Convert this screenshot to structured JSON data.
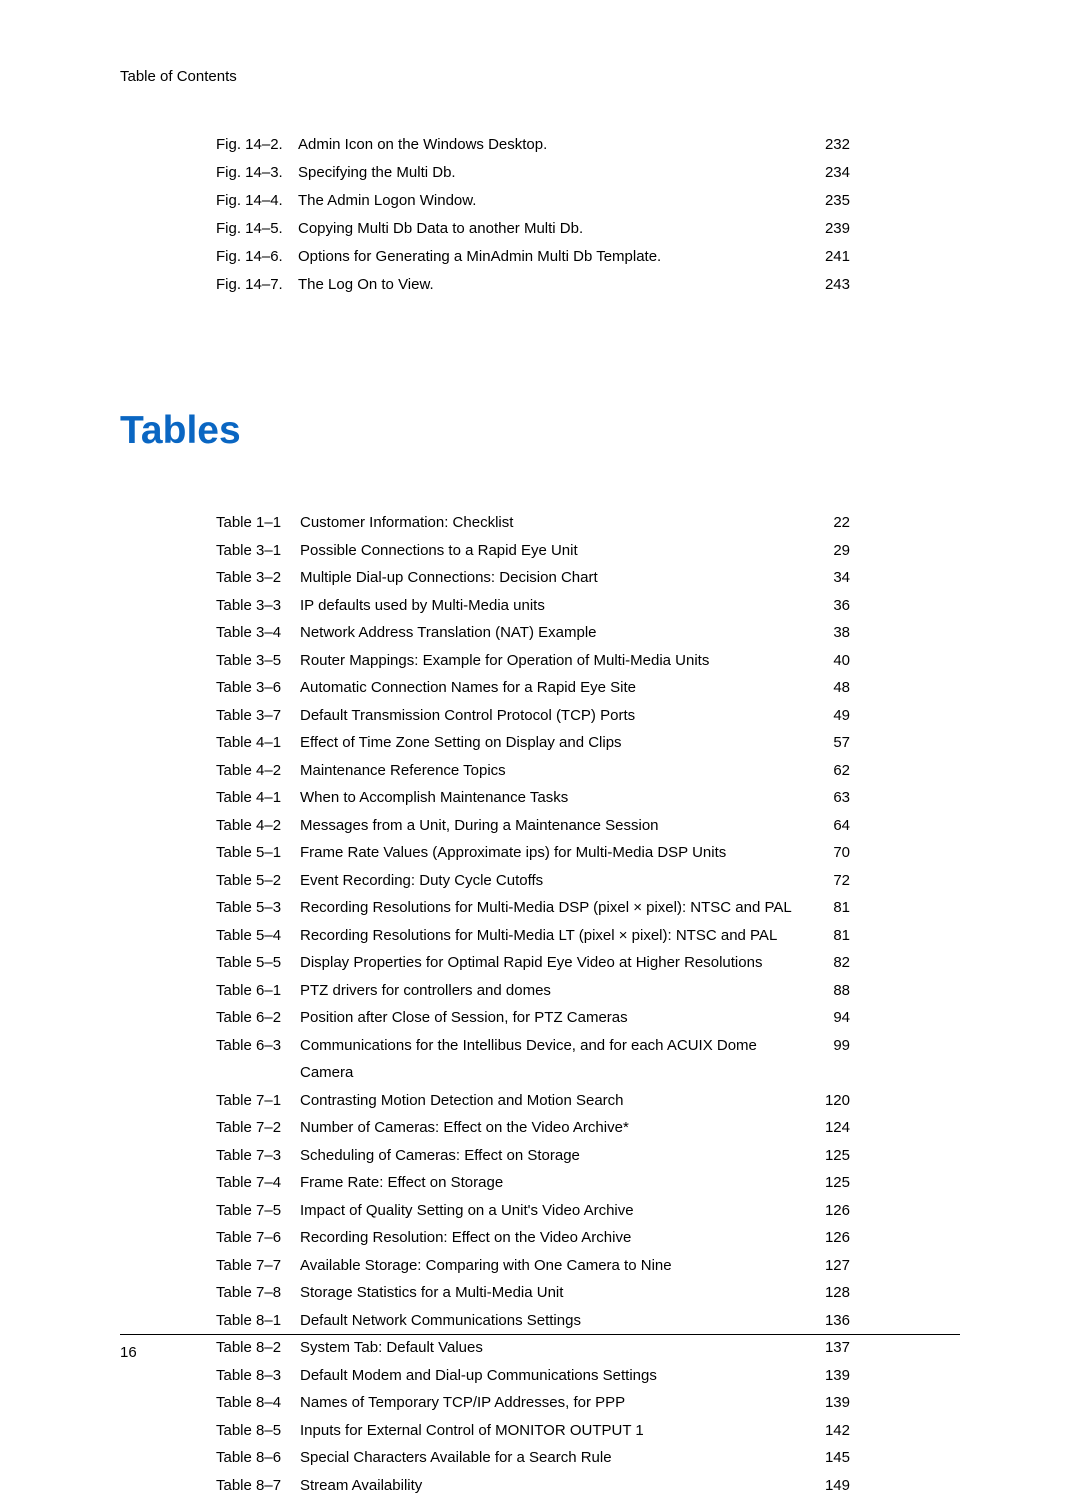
{
  "header_label": "Table of Contents",
  "section_heading": "Tables",
  "page_number": "16",
  "figures": [
    {
      "id": "Fig. 14–2.",
      "title": "Admin Icon on the Windows Desktop.",
      "page": "232"
    },
    {
      "id": "Fig. 14–3.",
      "title": "Specifying the Multi Db.",
      "page": "234"
    },
    {
      "id": "Fig. 14–4.",
      "title": "The Admin Logon Window.",
      "page": "235"
    },
    {
      "id": "Fig. 14–5.",
      "title": "Copying Multi Db Data to another Multi Db.",
      "page": "239"
    },
    {
      "id": "Fig. 14–6.",
      "title": "Options for Generating a MinAdmin Multi Db Template.",
      "page": "241"
    },
    {
      "id": "Fig. 14–7.",
      "title": "The Log On to View.",
      "page": "243"
    }
  ],
  "tables": [
    {
      "id": "Table 1–1",
      "title": "Customer Information: Checklist",
      "page": "22"
    },
    {
      "id": "Table 3–1",
      "title": "Possible Connections to a Rapid Eye Unit",
      "page": "29"
    },
    {
      "id": "Table 3–2",
      "title": "Multiple Dial-up Connections: Decision Chart",
      "page": "34"
    },
    {
      "id": "Table 3–3",
      "title": "IP defaults used by Multi-Media units",
      "page": "36"
    },
    {
      "id": "Table 3–4",
      "title": "Network Address Translation (NAT) Example",
      "page": "38"
    },
    {
      "id": "Table 3–5",
      "title": "Router Mappings: Example for Operation of Multi-Media Units",
      "page": "40"
    },
    {
      "id": "Table 3–6",
      "title": "Automatic Connection Names for a Rapid Eye Site",
      "page": "48"
    },
    {
      "id": "Table 3–7",
      "title": "Default Transmission Control Protocol (TCP) Ports",
      "page": "49"
    },
    {
      "id": "Table 4–1",
      "title": "Effect of Time Zone Setting on Display and Clips",
      "page": "57"
    },
    {
      "id": "Table 4–2",
      "title": "Maintenance Reference Topics",
      "page": "62"
    },
    {
      "id": "Table 4–1",
      "title": "When to Accomplish Maintenance Tasks",
      "page": "63"
    },
    {
      "id": "Table 4–2",
      "title": "Messages from a Unit, During a Maintenance Session",
      "page": "64"
    },
    {
      "id": "Table 5–1",
      "title": "Frame Rate Values (Approximate ips) for Multi-Media DSP Units",
      "page": "70"
    },
    {
      "id": "Table 5–2",
      "title": "Event Recording: Duty Cycle Cutoffs",
      "page": "72"
    },
    {
      "id": "Table 5–3",
      "title": "Recording Resolutions for Multi-Media DSP (pixel × pixel): NTSC and PAL",
      "page": "81"
    },
    {
      "id": "Table 5–4",
      "title": "Recording Resolutions for Multi-Media LT (pixel × pixel): NTSC and PAL",
      "page": "81"
    },
    {
      "id": "Table 5–5",
      "title": "Display Properties for Optimal Rapid Eye Video at Higher Resolutions",
      "page": "82"
    },
    {
      "id": "Table 6–1",
      "title": "PTZ drivers for controllers and domes",
      "page": "88"
    },
    {
      "id": "Table 6–2",
      "title": "Position after Close of Session, for PTZ Cameras",
      "page": "94"
    },
    {
      "id": "Table 6–3",
      "title": "Communications for the Intellibus Device, and for each ACUIX Dome Camera",
      "page": "99"
    },
    {
      "id": "Table 7–1",
      "title": "Contrasting Motion Detection and Motion Search",
      "page": "120"
    },
    {
      "id": "Table 7–2",
      "title": "Number of Cameras: Effect on the Video Archive*",
      "page": "124"
    },
    {
      "id": "Table 7–3",
      "title": "Scheduling of Cameras: Effect on Storage",
      "page": "125"
    },
    {
      "id": "Table 7–4",
      "title": "Frame Rate: Effect on Storage",
      "page": "125"
    },
    {
      "id": "Table 7–5",
      "title": "Impact of Quality Setting on a Unit's Video Archive",
      "page": "126"
    },
    {
      "id": "Table 7–6",
      "title": "Recording Resolution: Effect on the Video Archive",
      "page": "126"
    },
    {
      "id": "Table 7–7",
      "title": "Available Storage: Comparing with One Camera to Nine",
      "page": "127"
    },
    {
      "id": "Table 7–8",
      "title": "Storage Statistics for a Multi-Media Unit",
      "page": "128"
    },
    {
      "id": "Table 8–1",
      "title": "Default Network Communications Settings",
      "page": "136"
    },
    {
      "id": "Table 8–2",
      "title": "System Tab: Default Values",
      "page": "137"
    },
    {
      "id": "Table 8–3",
      "title": "Default Modem and Dial-up Communications Settings",
      "page": "139"
    },
    {
      "id": "Table 8–4",
      "title": "Names of Temporary TCP/IP Addresses, for PPP",
      "page": "139"
    },
    {
      "id": "Table 8–5",
      "title": "Inputs for External Control of MONITOR OUTPUT 1",
      "page": "142"
    },
    {
      "id": "Table 8–6",
      "title": "Special Characters Available for a Search Rule",
      "page": "145"
    },
    {
      "id": "Table 8–7",
      "title": "Stream Availability",
      "page": "149"
    }
  ]
}
